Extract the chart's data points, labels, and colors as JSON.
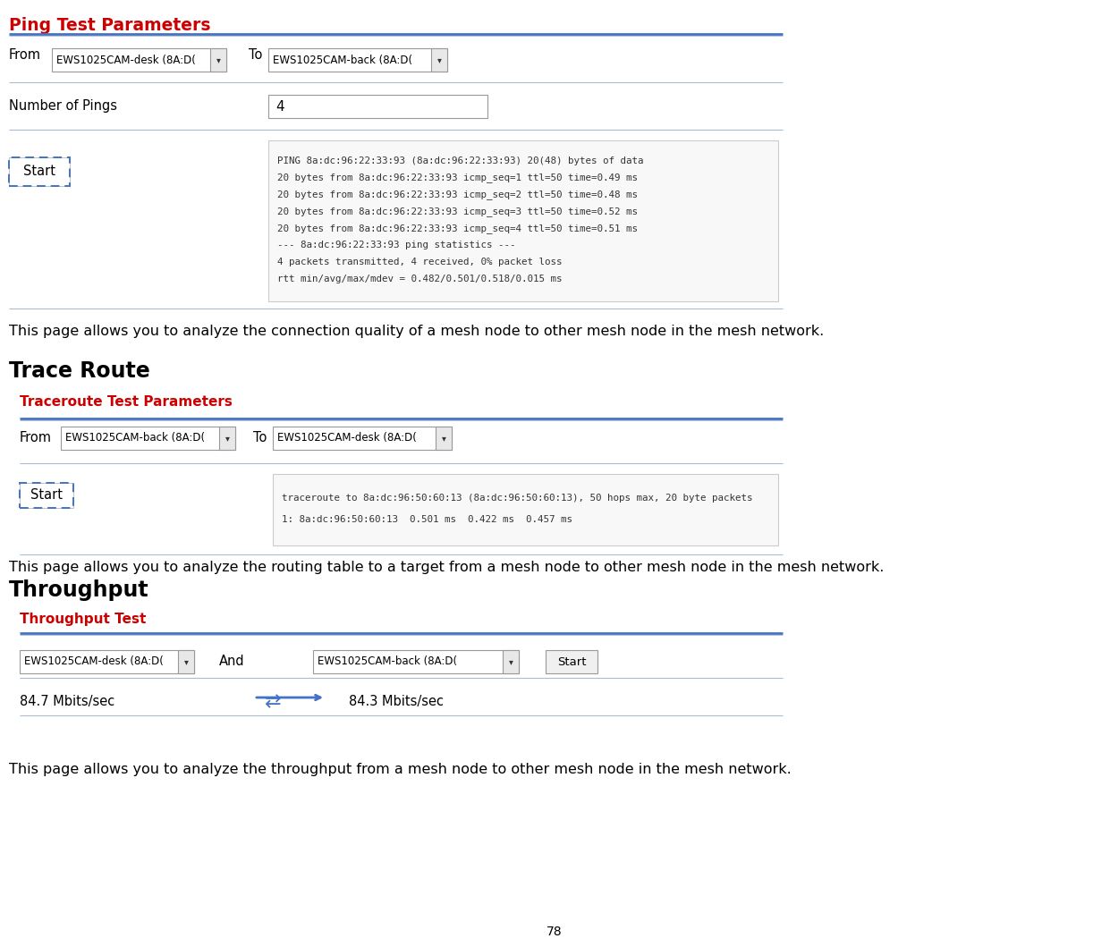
{
  "bg_color": "#ffffff",
  "ping_header": "Ping Test Parameters",
  "ping_from": "EWS1025CAM-desk (8A:D(",
  "ping_to": "EWS1025CAM-back (8A:D(",
  "ping_pings_label": "Number of Pings",
  "ping_pings_value": "4",
  "ping_output": [
    "PING 8a:dc:96:22:33:93 (8a:dc:96:22:33:93) 20(48) bytes of data",
    "20 bytes from 8a:dc:96:22:33:93 icmp_seq=1 ttl=50 time=0.49 ms",
    "20 bytes from 8a:dc:96:22:33:93 icmp_seq=2 ttl=50 time=0.48 ms",
    "20 bytes from 8a:dc:96:22:33:93 icmp_seq=3 ttl=50 time=0.52 ms",
    "20 bytes from 8a:dc:96:22:33:93 icmp_seq=4 ttl=50 time=0.51 ms",
    "--- 8a:dc:96:22:33:93 ping statistics ---",
    "4 packets transmitted, 4 received, 0% packet loss",
    "rtt min/avg/max/mdev = 0.482/0.501/0.518/0.015 ms"
  ],
  "ping_desc": "This page allows you to analyze the connection quality of a mesh node to other mesh node in the mesh network.",
  "tr_title": "Trace Route",
  "tr_header": "Traceroute Test Parameters",
  "tr_from": "EWS1025CAM-back (8A:D(",
  "tr_to": "EWS1025CAM-desk (8A:D(",
  "tr_output": [
    "traceroute to 8a:dc:96:50:60:13 (8a:dc:96:50:60:13), 50 hops max, 20 byte packets",
    "1: 8a:dc:96:50:60:13  0.501 ms  0.422 ms  0.457 ms"
  ],
  "tr_desc": "This page allows you to analyze the routing table to a target from a mesh node to other mesh node in the mesh network.",
  "tp_title": "Throughput",
  "tp_header": "Throughput Test",
  "tp_left": "EWS1025CAM-desk (8A:D(",
  "tp_and": "And",
  "tp_right": "EWS1025CAM-back (8A:D(",
  "tp_left_speed": "84.7 Mbits/sec",
  "tp_right_speed": "84.3 Mbits/sec",
  "tp_desc": "This page allows you to analyze the throughput from a mesh node to other mesh node in the mesh network.",
  "page_number": "78",
  "red": "#cc0000",
  "blue": "#4472c4",
  "light_blue": "#aabbd4",
  "black": "#000000",
  "gray_bg": "#f2f2f2",
  "box_border": "#cccccc",
  "white": "#ffffff"
}
